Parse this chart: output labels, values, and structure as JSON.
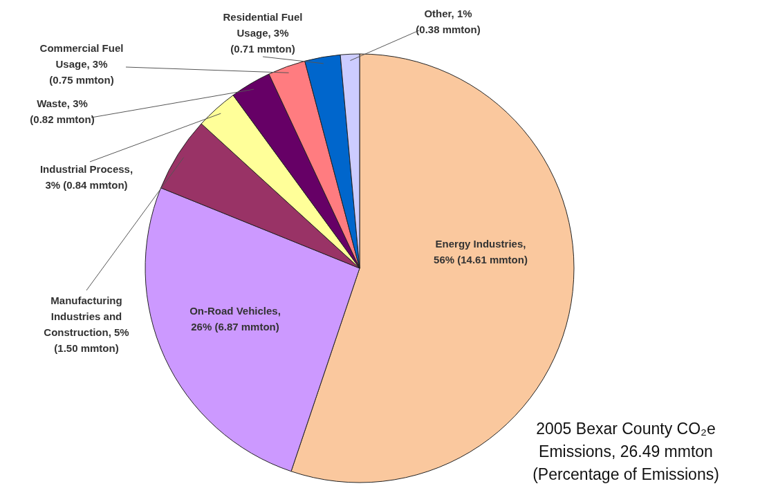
{
  "chart_data": {
    "type": "pie",
    "title": "2005 Bexar County CO₂e Emissions, 26.49 mmton (Percentage of Emissions)",
    "categories": [
      "Energy Industries, 56% (14.61 mmton)",
      "On-Road Vehicles, 26% (6.87 mmton)",
      "Manufacturing Industries and Construction, 5% (1.50 mmton)",
      "Industrial Process, 3% (0.84 mmton)",
      "Waste, 3% (0.82 mmton)",
      "Commercial Fuel Usage, 3% (0.75 mmton)",
      "Residential Fuel Usage, 3% (0.71 mmton)",
      "Other, 1% (0.38 mmton)"
    ],
    "values": [
      14.61,
      6.87,
      1.5,
      0.84,
      0.82,
      0.75,
      0.71,
      0.38
    ],
    "colors": [
      "#fac89e",
      "#cc99ff",
      "#993366",
      "#ffff99",
      "#660066",
      "#ff7c80",
      "#0066cc",
      "#ccccff"
    ]
  }
}
